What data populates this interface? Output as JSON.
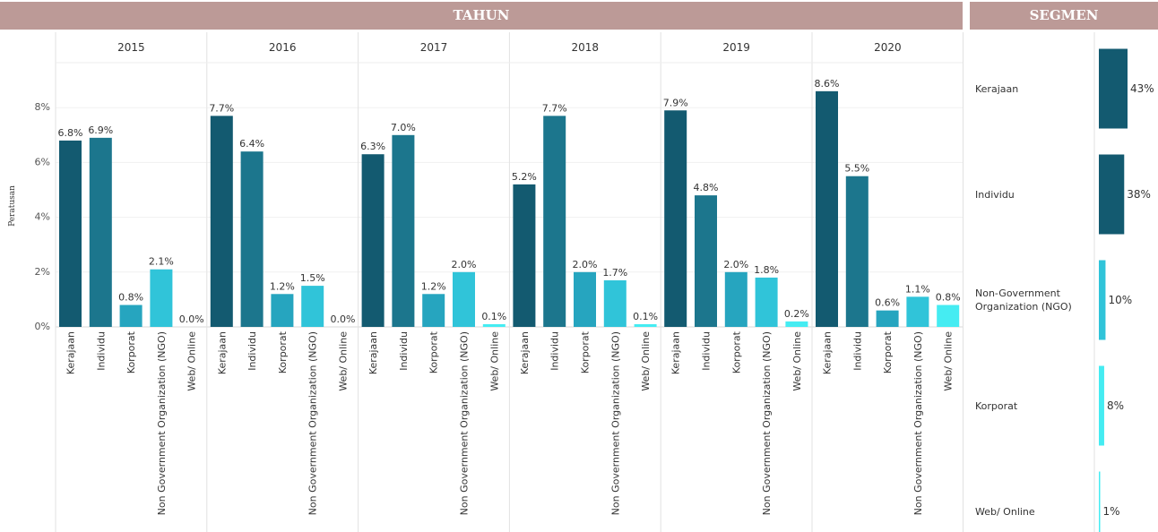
{
  "header": {
    "year_title": "TAHUN",
    "segment_title": "SEGMEN"
  },
  "main_chart": {
    "ylabel": "Peratusan"
  },
  "chart_data": [
    {
      "type": "bar",
      "ylabel": "Peratusan",
      "ylim": [
        0,
        9.4
      ],
      "yticks": [
        "0%",
        "2%",
        "4%",
        "6%",
        "8%"
      ],
      "ytick_values": [
        0,
        2,
        4,
        6,
        8
      ],
      "categories": [
        "Kerajaan",
        "Individu",
        "Korporat",
        "Non Government Organization (NGO)",
        "Web/ Online"
      ],
      "colors": [
        "#135a70",
        "#1c768d",
        "#26a5bf",
        "#30c4d9",
        "#45ecf2"
      ],
      "panels": [
        {
          "year": "2015",
          "values": [
            6.8,
            6.9,
            0.8,
            2.1,
            0.0
          ],
          "labels": [
            "6.8%",
            "6.9%",
            "0.8%",
            "2.1%",
            "0.0%"
          ]
        },
        {
          "year": "2016",
          "values": [
            7.7,
            6.4,
            1.2,
            1.5,
            0.0
          ],
          "labels": [
            "7.7%",
            "6.4%",
            "1.2%",
            "1.5%",
            "0.0%"
          ]
        },
        {
          "year": "2017",
          "values": [
            6.3,
            7.0,
            1.2,
            2.0,
            0.1
          ],
          "labels": [
            "6.3%",
            "7.0%",
            "1.2%",
            "2.0%",
            "0.1%"
          ]
        },
        {
          "year": "2018",
          "values": [
            5.2,
            7.7,
            2.0,
            1.7,
            0.1
          ],
          "labels": [
            "5.2%",
            "7.7%",
            "2.0%",
            "1.7%",
            "0.1%"
          ]
        },
        {
          "year": "2019",
          "values": [
            7.9,
            4.8,
            2.0,
            1.8,
            0.2
          ],
          "labels": [
            "7.9%",
            "4.8%",
            "2.0%",
            "1.8%",
            "0.2%"
          ]
        },
        {
          "year": "2020",
          "values": [
            8.6,
            5.5,
            0.6,
            1.1,
            0.8
          ],
          "labels": [
            "8.6%",
            "5.5%",
            "0.6%",
            "1.1%",
            "0.8%"
          ]
        }
      ]
    },
    {
      "type": "bar",
      "orientation": "horizontal",
      "categories": [
        "Kerajaan",
        "Individu",
        "Non-Government Organization (NGO)",
        "Korporat",
        "Web/ Online"
      ],
      "values": [
        43,
        38,
        10,
        8,
        1
      ],
      "labels": [
        "43%",
        "38%",
        "10%",
        "8%",
        "1%"
      ],
      "colors": [
        "#135a70",
        "#135a70",
        "#30c4d9",
        "#45ecf2",
        "#45ecf2"
      ]
    }
  ]
}
